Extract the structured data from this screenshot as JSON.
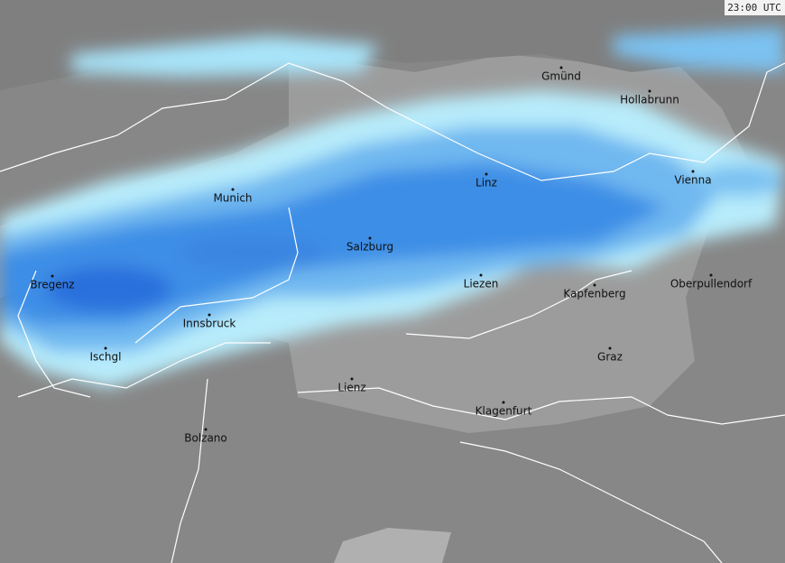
{
  "timestamp": "23:00 UTC",
  "cities": [
    "Gmünd",
    "Hollabrunn",
    "Linz",
    "Vienna",
    "Munich",
    "Salzburg",
    "Bregenz",
    "Liezen",
    "Kapfenberg",
    "Oberpullendorf",
    "Innsbruck",
    "Ischgl",
    "Graz",
    "Lienz",
    "Klagenfurt",
    "Bolzano"
  ]
}
